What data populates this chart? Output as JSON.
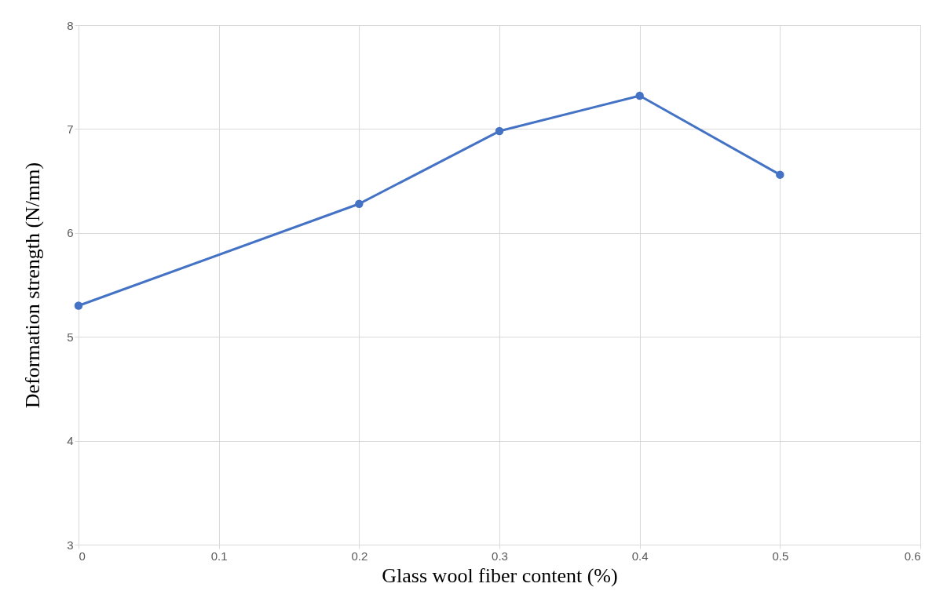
{
  "chart_data": {
    "type": "line",
    "xlabel": "Glass wool fiber content (%)",
    "ylabel": "Deformation strength (N/mm)",
    "x": [
      0,
      0.2,
      0.3,
      0.4,
      0.5
    ],
    "series": [
      {
        "color": "#4472c4",
        "values": [
          5.3,
          6.28,
          6.98,
          7.32,
          6.56
        ]
      }
    ],
    "xlim": [
      0,
      0.6
    ],
    "xticks": [
      0,
      0.1,
      0.2,
      0.3,
      0.4,
      0.5,
      0.6
    ],
    "ylim": [
      3,
      8
    ],
    "yticks": [
      3,
      4,
      5,
      6,
      7,
      8
    ],
    "grid": true,
    "marker": "circle",
    "line_style": "solid"
  }
}
